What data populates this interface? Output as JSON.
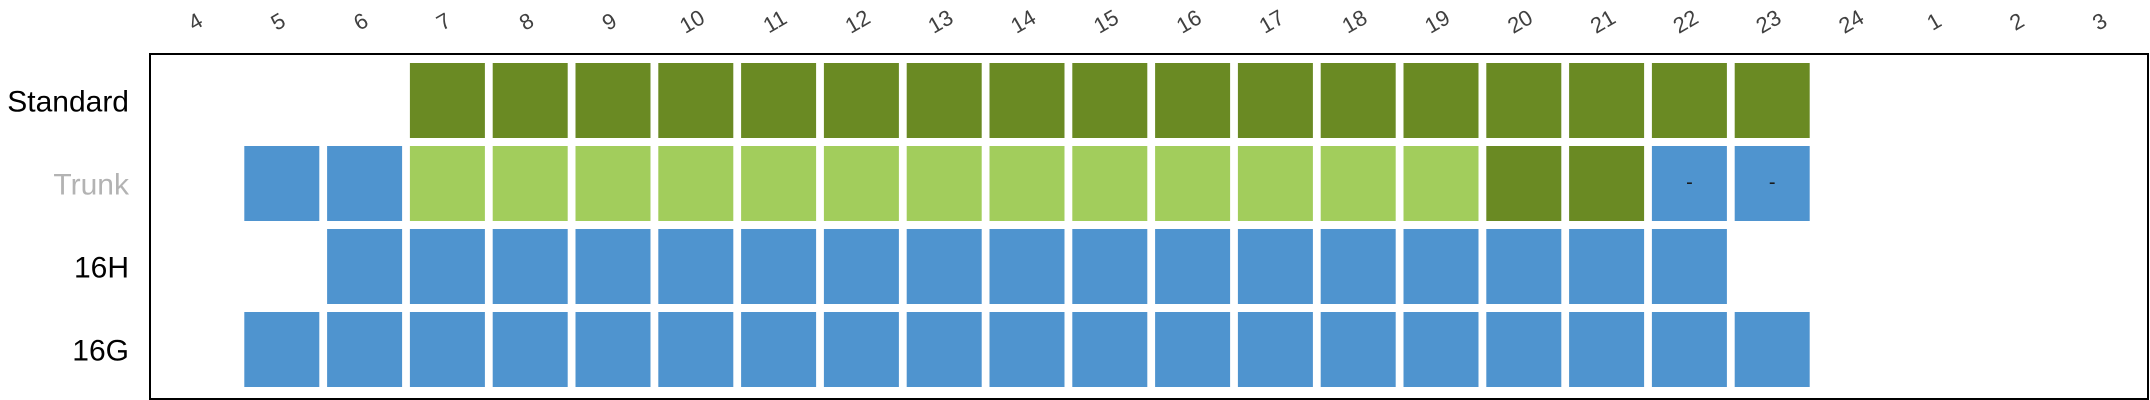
{
  "chart_data": {
    "type": "heatmap",
    "x": [
      "4",
      "5",
      "6",
      "7",
      "8",
      "9",
      "10",
      "11",
      "12",
      "13",
      "14",
      "15",
      "16",
      "17",
      "18",
      "19",
      "20",
      "21",
      "22",
      "23",
      "24",
      "1",
      "2",
      "3"
    ],
    "colors": {
      "dark_green": "#6a8a23",
      "light_green": "#a2cd5c",
      "blue": "#4f94cf",
      "frame": "#000000",
      "label_default": "#000000",
      "label_muted": "#b3b3b3"
    },
    "rows": [
      {
        "name": "Standard",
        "label_color": "#000000",
        "cells": [
          {
            "hour": "7",
            "color": "dark_green"
          },
          {
            "hour": "8",
            "color": "dark_green"
          },
          {
            "hour": "9",
            "color": "dark_green"
          },
          {
            "hour": "10",
            "color": "dark_green"
          },
          {
            "hour": "11",
            "color": "dark_green"
          },
          {
            "hour": "12",
            "color": "dark_green"
          },
          {
            "hour": "13",
            "color": "dark_green"
          },
          {
            "hour": "14",
            "color": "dark_green"
          },
          {
            "hour": "15",
            "color": "dark_green"
          },
          {
            "hour": "16",
            "color": "dark_green"
          },
          {
            "hour": "17",
            "color": "dark_green"
          },
          {
            "hour": "18",
            "color": "dark_green"
          },
          {
            "hour": "19",
            "color": "dark_green"
          },
          {
            "hour": "20",
            "color": "dark_green"
          },
          {
            "hour": "21",
            "color": "dark_green"
          },
          {
            "hour": "22",
            "color": "dark_green"
          },
          {
            "hour": "23",
            "color": "dark_green"
          }
        ]
      },
      {
        "name": "Trunk",
        "label_color": "#b3b3b3",
        "cells": [
          {
            "hour": "5",
            "color": "blue"
          },
          {
            "hour": "6",
            "color": "blue"
          },
          {
            "hour": "7",
            "color": "light_green"
          },
          {
            "hour": "8",
            "color": "light_green"
          },
          {
            "hour": "9",
            "color": "light_green"
          },
          {
            "hour": "10",
            "color": "light_green"
          },
          {
            "hour": "11",
            "color": "light_green"
          },
          {
            "hour": "12",
            "color": "light_green"
          },
          {
            "hour": "13",
            "color": "light_green"
          },
          {
            "hour": "14",
            "color": "light_green"
          },
          {
            "hour": "15",
            "color": "light_green"
          },
          {
            "hour": "16",
            "color": "light_green"
          },
          {
            "hour": "17",
            "color": "light_green"
          },
          {
            "hour": "18",
            "color": "light_green"
          },
          {
            "hour": "19",
            "color": "light_green"
          },
          {
            "hour": "20",
            "color": "dark_green"
          },
          {
            "hour": "21",
            "color": "dark_green"
          },
          {
            "hour": "22",
            "color": "blue",
            "note": "-"
          },
          {
            "hour": "23",
            "color": "blue",
            "note": "-"
          }
        ]
      },
      {
        "name": "16H",
        "label_color": "#000000",
        "cells": [
          {
            "hour": "6",
            "color": "blue"
          },
          {
            "hour": "7",
            "color": "blue"
          },
          {
            "hour": "8",
            "color": "blue"
          },
          {
            "hour": "9",
            "color": "blue"
          },
          {
            "hour": "10",
            "color": "blue"
          },
          {
            "hour": "11",
            "color": "blue"
          },
          {
            "hour": "12",
            "color": "blue"
          },
          {
            "hour": "13",
            "color": "blue"
          },
          {
            "hour": "14",
            "color": "blue"
          },
          {
            "hour": "15",
            "color": "blue"
          },
          {
            "hour": "16",
            "color": "blue"
          },
          {
            "hour": "17",
            "color": "blue"
          },
          {
            "hour": "18",
            "color": "blue"
          },
          {
            "hour": "19",
            "color": "blue"
          },
          {
            "hour": "20",
            "color": "blue"
          },
          {
            "hour": "21",
            "color": "blue"
          },
          {
            "hour": "22",
            "color": "blue"
          }
        ]
      },
      {
        "name": "16G",
        "label_color": "#000000",
        "cells": [
          {
            "hour": "5",
            "color": "blue"
          },
          {
            "hour": "6",
            "color": "blue"
          },
          {
            "hour": "7",
            "color": "blue"
          },
          {
            "hour": "8",
            "color": "blue"
          },
          {
            "hour": "9",
            "color": "blue"
          },
          {
            "hour": "10",
            "color": "blue"
          },
          {
            "hour": "11",
            "color": "blue"
          },
          {
            "hour": "12",
            "color": "blue"
          },
          {
            "hour": "13",
            "color": "blue"
          },
          {
            "hour": "14",
            "color": "blue"
          },
          {
            "hour": "15",
            "color": "blue"
          },
          {
            "hour": "16",
            "color": "blue"
          },
          {
            "hour": "17",
            "color": "blue"
          },
          {
            "hour": "18",
            "color": "blue"
          },
          {
            "hour": "19",
            "color": "blue"
          },
          {
            "hour": "20",
            "color": "blue"
          },
          {
            "hour": "21",
            "color": "blue"
          },
          {
            "hour": "22",
            "color": "blue"
          },
          {
            "hour": "23",
            "color": "blue"
          }
        ]
      }
    ]
  }
}
